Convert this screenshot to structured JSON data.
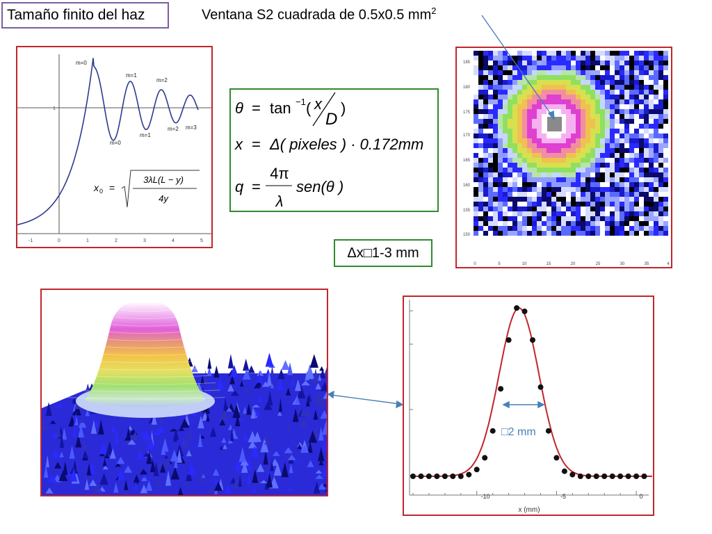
{
  "title": "Tamaño finito del haz",
  "window_label": {
    "text": "Ventana S2 cuadrada de 0.5x0.5 mm",
    "sup": "2"
  },
  "delta_x": "Δx□1-3 mm",
  "fresnel_plot": {
    "order_labels": [
      "m=0",
      "m=1",
      "m=2",
      "m=0",
      "m=1",
      "m=2",
      "m=3"
    ],
    "formula": {
      "lhs": "x",
      "lhs_sub": "0",
      "eq": "=",
      "num": "3λL(L − y)",
      "den": "4y"
    },
    "x_ticks": [
      "-1",
      "0",
      "1",
      "2",
      "3",
      "4",
      "5"
    ],
    "y_tick": "1"
  },
  "equations": {
    "line1": {
      "lhs": "θ",
      "eq": "=",
      "func": "tan",
      "sup": "−1",
      "open": "(",
      "num": "x",
      "den": "D",
      "close": ")"
    },
    "line2": {
      "lhs": "x",
      "eq": "=",
      "rhs": "Δ( pixeles ) · 0.172mm"
    },
    "line3": {
      "lhs": "q",
      "eq": "=",
      "num": "4π",
      "den": "λ",
      "rhs": "sen(θ )"
    }
  },
  "detector_map": {
    "y_ticks": [
      "185",
      "180",
      "175",
      "170",
      "165",
      "160",
      "155",
      "150"
    ],
    "x_ticks": [
      "0",
      "5",
      "10",
      "15",
      "20",
      "25",
      "30",
      "35",
      "4"
    ]
  },
  "profile_chart": {
    "x_label": "x (mm)",
    "x_ticks": [
      "-10",
      "-5",
      "0"
    ],
    "fwhm_label": "□2 mm"
  },
  "colors": {
    "frame_red": "#c0262c",
    "frame_green": "#2f8a2f",
    "arrow_blue": "#4a7fb8",
    "curve_blue": "#2b3a8f"
  },
  "chart_data": {
    "type": "scatter",
    "xlabel": "x (mm)",
    "xlim": [
      -14,
      1
    ],
    "series": [
      {
        "x": [
          -14,
          -13.5,
          -13,
          -12.5,
          -12,
          -11.5,
          -11,
          -10.5,
          -10,
          -9.5,
          -9,
          -8.5,
          -8,
          -7.5,
          -7,
          -6.5,
          -6,
          -5.5,
          -5,
          -4.5,
          -4,
          -3.5,
          -3,
          -2.5,
          -2,
          -1.5,
          -1,
          -0.5,
          0,
          0.5
        ],
        "y": [
          0,
          0,
          0,
          0,
          0,
          0,
          0,
          0.01,
          0.04,
          0.11,
          0.27,
          0.52,
          0.81,
          1.0,
          0.98,
          0.81,
          0.53,
          0.27,
          0.11,
          0.03,
          0.01,
          0,
          0,
          0,
          0,
          0,
          0,
          0,
          0,
          0
        ]
      }
    ]
  }
}
